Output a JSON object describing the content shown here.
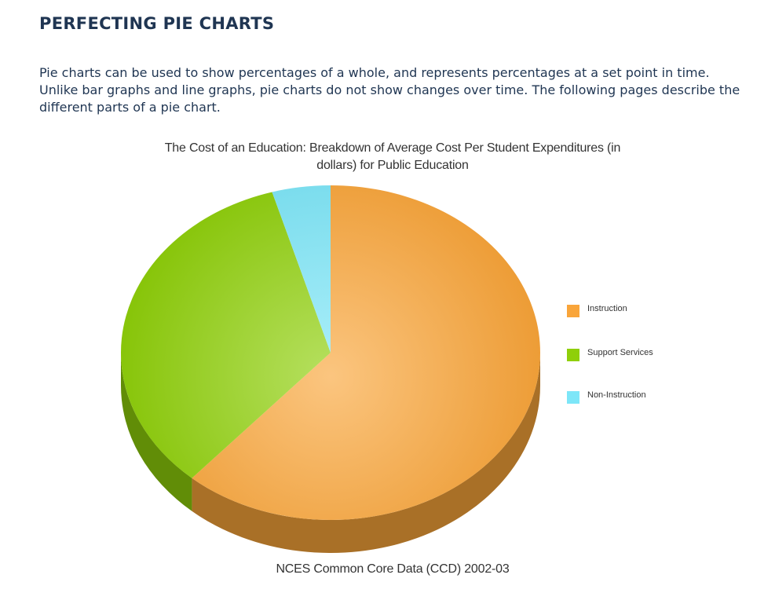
{
  "page": {
    "title": "PERFECTING PIE CHARTS",
    "intro": "Pie charts can be used to show percentages of a whole, and represents percentages at a set point in time. Unlike bar graphs and line graphs, pie charts do not show changes over time. The following pages describe the different parts of a pie chart."
  },
  "chart_data": {
    "type": "pie",
    "title": "The Cost of an Education: Breakdown of Average Cost Per Student Expenditures (in dollars) for Public Education",
    "source": "NCES Common Core Data (CCD) 2002-03",
    "style": "3d",
    "legend_position": "right",
    "slices": [
      {
        "label": "Instruction",
        "value": 61.5,
        "color": "#f9a53a"
      },
      {
        "label": "Support Services",
        "value": 34.0,
        "color": "#8fcf0a"
      },
      {
        "label": "Non-Instruction",
        "value": 4.5,
        "color": "#7de6f8"
      }
    ],
    "legend": [
      "Instruction",
      "Support Services",
      "Non-Instruction"
    ]
  }
}
